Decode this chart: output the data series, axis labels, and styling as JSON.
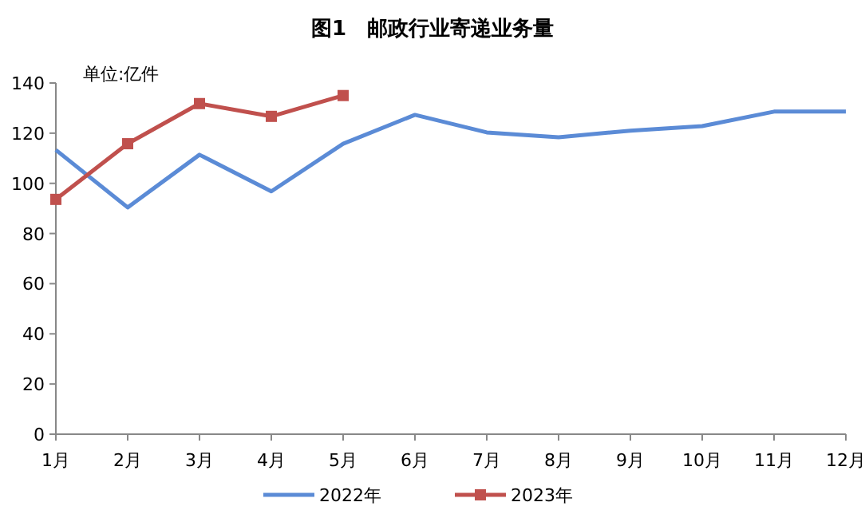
{
  "chart_data": {
    "type": "line",
    "title": "图1　邮政行业寄递业务量",
    "ylabel": "单位:亿件",
    "categories": [
      "1月",
      "2月",
      "3月",
      "4月",
      "5月",
      "6月",
      "7月",
      "8月",
      "9月",
      "10月",
      "11月",
      "12月"
    ],
    "series": [
      {
        "name": "2022年",
        "color": "#5b8bd6",
        "marker": "none",
        "values": [
          113.3,
          90.4,
          111.4,
          96.8,
          115.8,
          127.3,
          120.3,
          118.4,
          121,
          122.8,
          128.6,
          128.6
        ]
      },
      {
        "name": "2023年",
        "color": "#c0504d",
        "marker": "square",
        "values": [
          93.6,
          115.8,
          131.8,
          126.7,
          135,
          null,
          null,
          null,
          null,
          null,
          null,
          null
        ]
      }
    ],
    "ylim": [
      0,
      140
    ],
    "yticks": [
      0,
      20,
      40,
      60,
      80,
      100,
      120,
      140
    ],
    "legend": "bottom",
    "grid": false
  }
}
